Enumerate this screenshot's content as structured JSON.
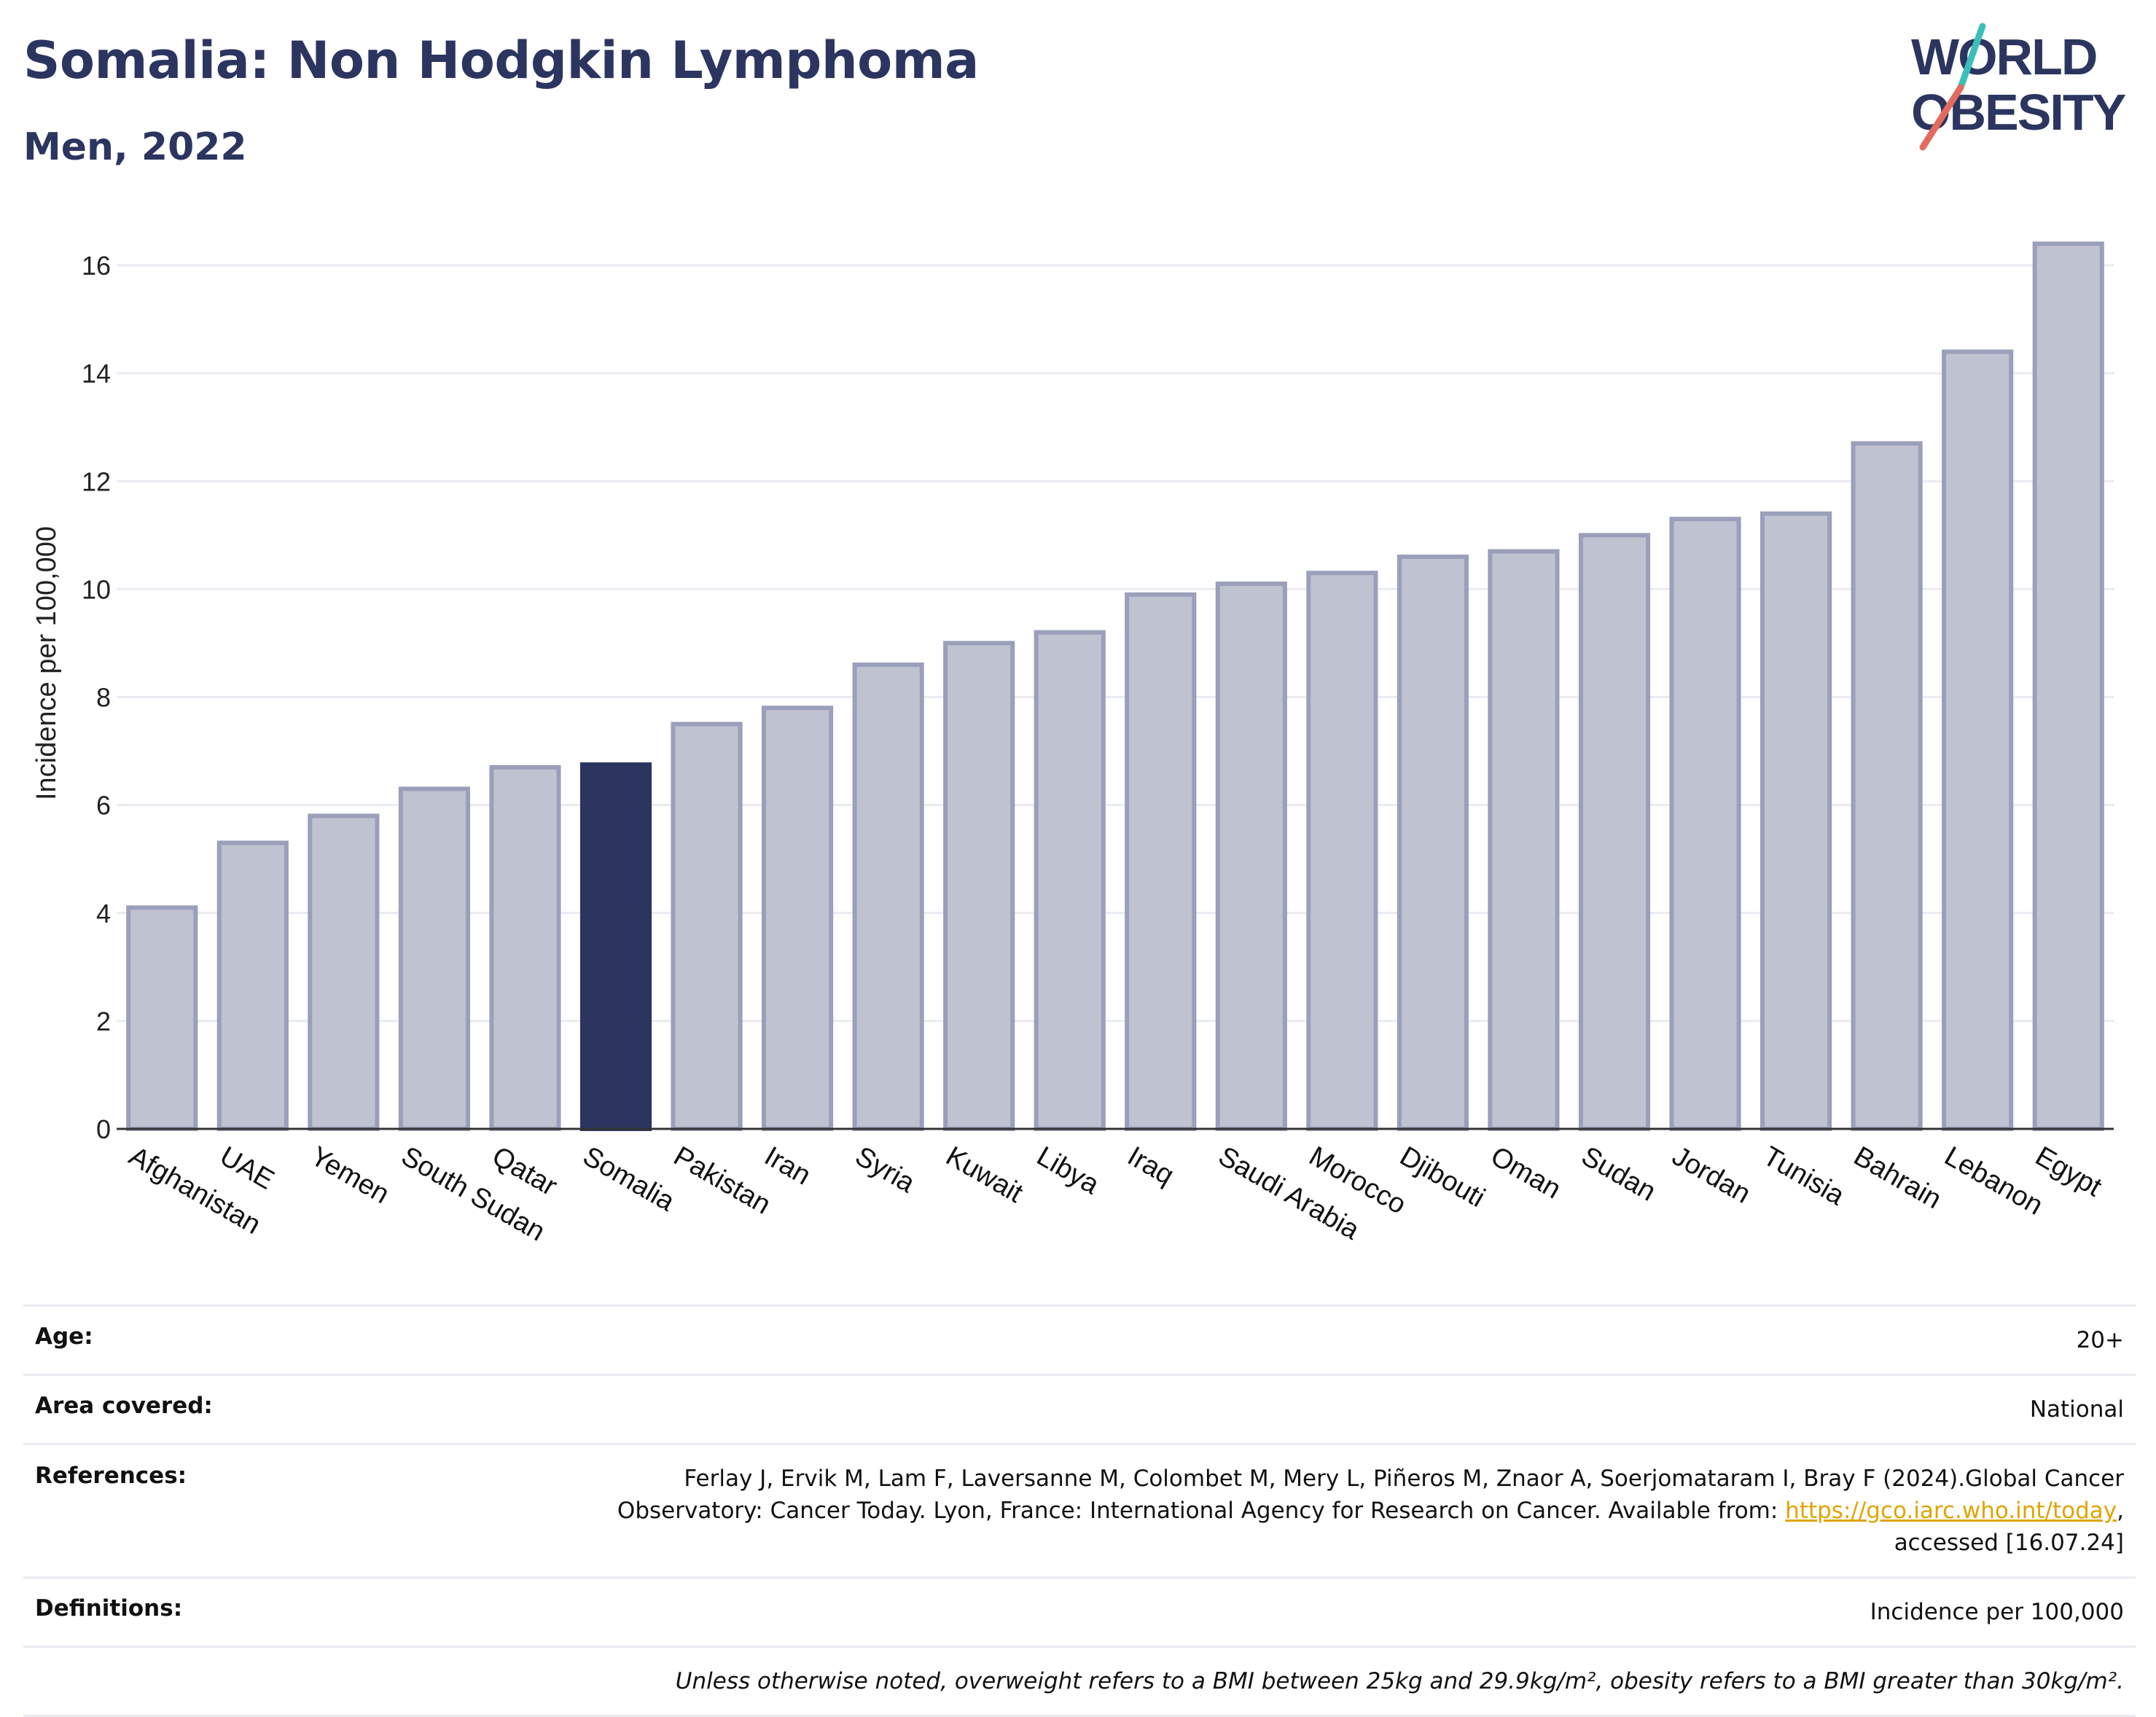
{
  "header": {
    "title": "Somalia: Non Hodgkin Lymphoma",
    "subtitle": "Men, 2022"
  },
  "logo": {
    "line1": "WORLD",
    "line2": "OBESITY",
    "colors": {
      "text": "#2c3560",
      "slash_teal": "#3bbfb8",
      "slash_coral": "#e46b5d"
    }
  },
  "chart_data": {
    "type": "bar",
    "categories": [
      "Afghanistan",
      "UAE",
      "Yemen",
      "South Sudan",
      "Qatar",
      "Somalia",
      "Pakistan",
      "Iran",
      "Syria",
      "Kuwait",
      "Libya",
      "Iraq",
      "Saudi Arabia",
      "Morocco",
      "Djibouti",
      "Oman",
      "Sudan",
      "Jordan",
      "Tunisia",
      "Bahrain",
      "Lebanon",
      "Egypt"
    ],
    "values": [
      4.1,
      5.3,
      5.8,
      6.3,
      6.7,
      6.75,
      7.5,
      7.8,
      8.6,
      9.0,
      9.2,
      9.9,
      10.1,
      10.3,
      10.6,
      10.7,
      11.0,
      11.3,
      11.4,
      12.7,
      14.4,
      16.4
    ],
    "highlight": "Somalia",
    "ylabel": "Incidence per 100,000",
    "xlabel": "",
    "ylim": [
      0,
      17
    ],
    "yticks": [
      0,
      2,
      4,
      6,
      8,
      10,
      12,
      14,
      16
    ],
    "grid": true,
    "colors": {
      "bar": "#bfc2d0",
      "bar_edge": "#9a9fba",
      "highlight": "#2c3560",
      "grid": "#e8ebf1"
    }
  },
  "info": {
    "age_label": "Age:",
    "age_value": "20+",
    "area_label": "Area covered:",
    "area_value": "National",
    "references_label": "References:",
    "references_line1": "Ferlay J, Ervik M, Lam F, Laversanne M, Colombet M, Mery L, Piñeros M, Znaor A, Soerjomataram I, Bray F (2024).Global Cancer",
    "references_line2": "Observatory: Cancer Today. Lyon, France: International Agency for Research on Cancer. Available from:",
    "references_link": "https://gco.iarc.who.int/today",
    "references_line3": "accessed [16.07.24]",
    "definitions_label": "Definitions:",
    "definitions_value": "Incidence per 100,000",
    "note": "Unless otherwise noted, overweight refers to a BMI between 25kg and 29.9kg/m², obesity refers to a BMI greater than 30kg/m²."
  }
}
